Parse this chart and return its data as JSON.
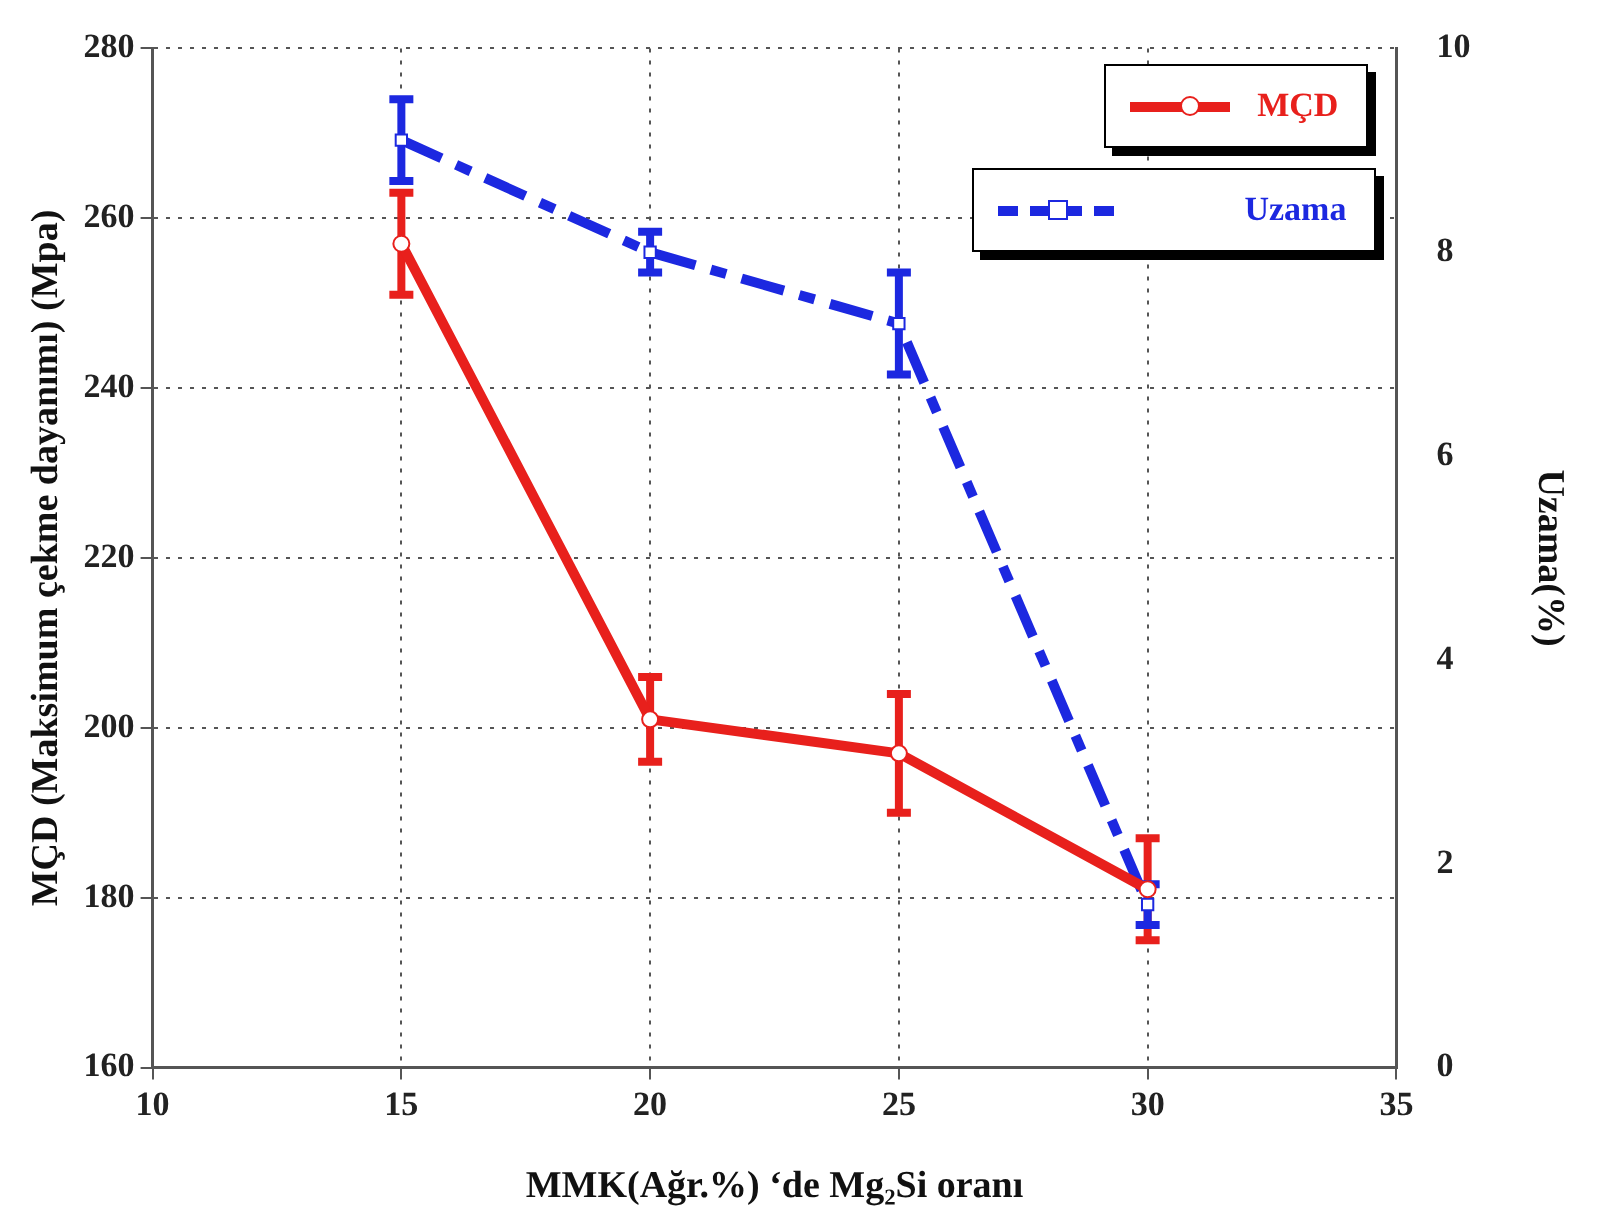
{
  "chart_data": {
    "type": "line",
    "xlabel": "MMK(Ağr.%) ‘de Mg₂Si oranı",
    "ylabel": "MÇD (Maksimum çekme dayanımı) (Mpa)",
    "y2label": "Uzama(%)",
    "x": [
      15,
      20,
      25,
      30
    ],
    "xlim": [
      10,
      35
    ],
    "xticks": [
      10,
      15,
      20,
      25,
      30,
      35
    ],
    "ylim": [
      160,
      280
    ],
    "yticks": [
      160,
      180,
      200,
      220,
      240,
      260,
      280
    ],
    "y2lim": [
      0,
      10
    ],
    "y2ticks": [
      0,
      2,
      4,
      6,
      8,
      10
    ],
    "grid": true,
    "legend": "top right",
    "series": [
      {
        "name": "MÇD",
        "color": "#e8201c",
        "values": [
          257,
          201,
          197,
          181
        ],
        "errors": [
          6,
          5,
          7,
          6
        ],
        "marker": "circle",
        "line_style": "solid"
      },
      {
        "name": "Uzama",
        "color": "#1c28e0",
        "values": [
          9.1,
          8.0,
          7.3,
          1.6
        ],
        "errors": [
          0.4,
          0.2,
          0.5,
          0.2
        ],
        "marker": "square",
        "line_style": "dashed",
        "axis": "y2"
      }
    ]
  }
}
